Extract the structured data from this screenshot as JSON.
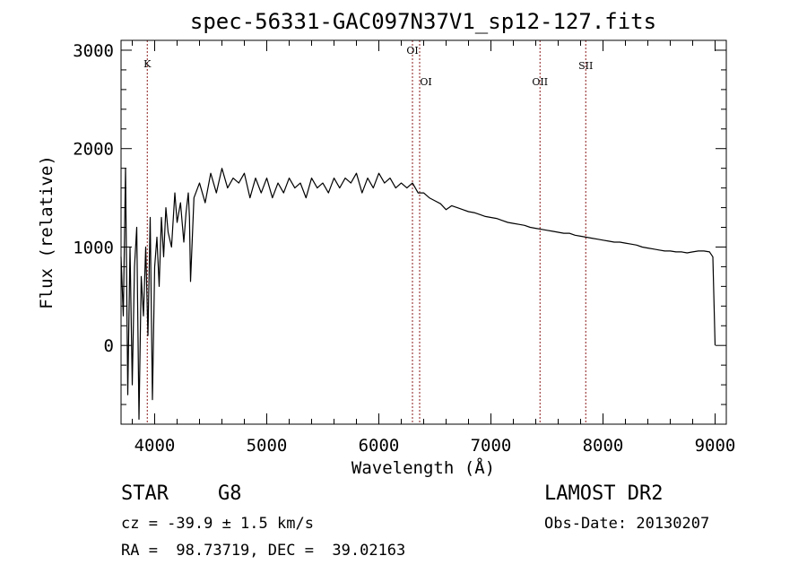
{
  "chart_data": {
    "type": "line",
    "title": "spec-56331-GAC097N37V1_sp12-127.fits",
    "xlabel": "Wavelength (Å)",
    "ylabel": "Flux (relative)",
    "xlim": [
      3700,
      9100
    ],
    "ylim": [
      -800,
      3100
    ],
    "xticks": [
      4000,
      5000,
      6000,
      7000,
      8000,
      9000
    ],
    "yticks": [
      0,
      1000,
      2000,
      3000
    ],
    "grid": false,
    "line_color": "#000000",
    "marker_color": "#8b1a1a",
    "series": [
      {
        "x": [
          3700,
          3720,
          3740,
          3760,
          3780,
          3800,
          3820,
          3840,
          3860,
          3880,
          3900,
          3920,
          3940,
          3960,
          3980,
          4000,
          4020,
          4040,
          4060,
          4080,
          4100,
          4120,
          4150,
          4180,
          4200,
          4230,
          4260,
          4280,
          4300,
          4310,
          4320,
          4350,
          4400,
          4450,
          4500,
          4550,
          4600,
          4650,
          4700,
          4750,
          4800,
          4850,
          4900,
          4950,
          5000,
          5050,
          5100,
          5150,
          5200,
          5250,
          5300,
          5350,
          5400,
          5450,
          5500,
          5550,
          5600,
          5650,
          5700,
          5750,
          5800,
          5850,
          5900,
          5950,
          6000,
          6050,
          6100,
          6150,
          6200,
          6250,
          6300,
          6350,
          6400,
          6450,
          6500,
          6550,
          6600,
          6650,
          6700,
          6750,
          6800,
          6850,
          6900,
          6950,
          7000,
          7050,
          7100,
          7150,
          7200,
          7250,
          7300,
          7350,
          7400,
          7450,
          7500,
          7550,
          7600,
          7650,
          7700,
          7750,
          7800,
          7850,
          7900,
          7950,
          8000,
          8050,
          8100,
          8150,
          8200,
          8250,
          8300,
          8350,
          8400,
          8450,
          8500,
          8550,
          8600,
          8650,
          8700,
          8750,
          8800,
          8850,
          8900,
          8950,
          8980,
          9000
        ],
        "y": [
          900,
          300,
          1800,
          -500,
          1000,
          -400,
          800,
          1200,
          -750,
          700,
          300,
          1000,
          100,
          1300,
          -550,
          800,
          1100,
          600,
          1300,
          900,
          1400,
          1150,
          1000,
          1550,
          1250,
          1450,
          1050,
          1350,
          1550,
          1300,
          650,
          1500,
          1650,
          1450,
          1750,
          1550,
          1800,
          1600,
          1700,
          1650,
          1750,
          1500,
          1700,
          1550,
          1700,
          1500,
          1650,
          1550,
          1700,
          1600,
          1650,
          1500,
          1700,
          1600,
          1650,
          1550,
          1700,
          1600,
          1700,
          1650,
          1750,
          1550,
          1700,
          1600,
          1750,
          1650,
          1700,
          1600,
          1650,
          1600,
          1650,
          1550,
          1550,
          1500,
          1470,
          1440,
          1380,
          1420,
          1400,
          1380,
          1360,
          1350,
          1330,
          1310,
          1300,
          1290,
          1270,
          1250,
          1240,
          1230,
          1220,
          1200,
          1190,
          1180,
          1170,
          1160,
          1150,
          1140,
          1140,
          1120,
          1110,
          1100,
          1090,
          1080,
          1070,
          1060,
          1050,
          1050,
          1040,
          1030,
          1020,
          1000,
          990,
          980,
          970,
          960,
          960,
          950,
          950,
          940,
          950,
          960,
          960,
          950,
          900,
          0
        ]
      }
    ],
    "lines": [
      {
        "label": "K",
        "x": 3934
      },
      {
        "label": "OI",
        "x": 6300
      },
      {
        "label": "OI",
        "x": 6364
      },
      {
        "label": "OII",
        "x": 7438
      },
      {
        "label": "SII",
        "x": 7846
      }
    ]
  },
  "info": {
    "object_class": "STAR",
    "subclass": "G8",
    "survey": "LAMOST DR2",
    "cz": "cz = -39.9 ± 1.5 km/s",
    "obs_date": "Obs-Date: 20130207",
    "coords": "RA =  98.73719, DEC =  39.02163"
  }
}
